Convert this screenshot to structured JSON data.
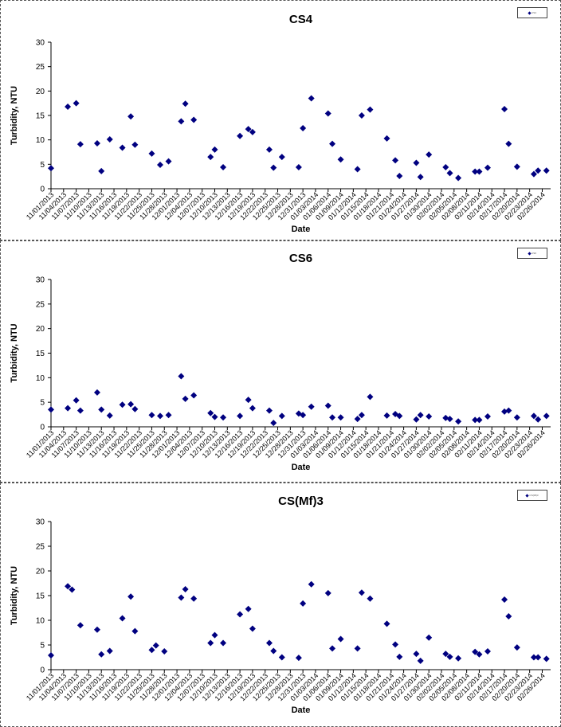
{
  "chart_data": [
    {
      "type": "scatter",
      "title": "CS4",
      "xlabel": "Date",
      "ylabel": "Turbidity, NTU",
      "ylim": [
        0,
        30
      ],
      "yticks": [
        0,
        5,
        10,
        15,
        20,
        25,
        30
      ],
      "grid": false,
      "legend": "top-right",
      "legend_label": "CS4",
      "marker_color": "#000080",
      "tick_labels": [
        "11/01/2013",
        "11/04/2013",
        "11/07/2013",
        "11/10/2013",
        "11/13/2013",
        "11/16/2013",
        "11/19/2013",
        "11/22/2013",
        "11/25/2013",
        "11/28/2013",
        "12/01/2013",
        "12/04/2013",
        "12/07/2013",
        "12/10/2013",
        "12/13/2013",
        "12/16/2013",
        "12/19/2013",
        "12/22/2013",
        "12/25/2013",
        "12/28/2013",
        "12/31/2013",
        "01/03/2014",
        "01/06/2014",
        "01/09/2014",
        "01/12/2014",
        "01/15/2014",
        "01/18/2014",
        "01/21/2014",
        "01/24/2014",
        "01/27/2014",
        "01/30/2014",
        "02/02/2014",
        "02/05/2014",
        "02/08/2014",
        "02/11/2014",
        "02/14/2014",
        "02/17/2014",
        "02/20/2014",
        "02/23/2014",
        "02/26/2014"
      ],
      "points": [
        {
          "x": "2013-11-01",
          "y": 4.2
        },
        {
          "x": "2013-11-05",
          "y": 16.8
        },
        {
          "x": "2013-11-07",
          "y": 17.5
        },
        {
          "x": "2013-11-08",
          "y": 9.1
        },
        {
          "x": "2013-11-12",
          "y": 9.3
        },
        {
          "x": "2013-11-13",
          "y": 3.6
        },
        {
          "x": "2013-11-15",
          "y": 10.1
        },
        {
          "x": "2013-11-18",
          "y": 8.4
        },
        {
          "x": "2013-11-20",
          "y": 14.8
        },
        {
          "x": "2013-11-21",
          "y": 9.0
        },
        {
          "x": "2013-11-25",
          "y": 7.2
        },
        {
          "x": "2013-11-27",
          "y": 4.9
        },
        {
          "x": "2013-11-29",
          "y": 5.6
        },
        {
          "x": "2013-12-02",
          "y": 13.8
        },
        {
          "x": "2013-12-03",
          "y": 17.4
        },
        {
          "x": "2013-12-05",
          "y": 14.1
        },
        {
          "x": "2013-12-09",
          "y": 6.5
        },
        {
          "x": "2013-12-10",
          "y": 8.0
        },
        {
          "x": "2013-12-12",
          "y": 4.4
        },
        {
          "x": "2013-12-16",
          "y": 10.8
        },
        {
          "x": "2013-12-18",
          "y": 12.2
        },
        {
          "x": "2013-12-19",
          "y": 11.6
        },
        {
          "x": "2013-12-23",
          "y": 8.0
        },
        {
          "x": "2013-12-24",
          "y": 4.3
        },
        {
          "x": "2013-12-26",
          "y": 6.5
        },
        {
          "x": "2013-12-30",
          "y": 4.4
        },
        {
          "x": "2013-12-31",
          "y": 12.4
        },
        {
          "x": "2014-01-02",
          "y": 18.5
        },
        {
          "x": "2014-01-06",
          "y": 15.4
        },
        {
          "x": "2014-01-07",
          "y": 9.2
        },
        {
          "x": "2014-01-09",
          "y": 6.0
        },
        {
          "x": "2014-01-13",
          "y": 4.0
        },
        {
          "x": "2014-01-14",
          "y": 15.0
        },
        {
          "x": "2014-01-16",
          "y": 16.2
        },
        {
          "x": "2014-01-20",
          "y": 10.3
        },
        {
          "x": "2014-01-22",
          "y": 5.8
        },
        {
          "x": "2014-01-23",
          "y": 2.6
        },
        {
          "x": "2014-01-27",
          "y": 5.3
        },
        {
          "x": "2014-01-28",
          "y": 2.4
        },
        {
          "x": "2014-01-30",
          "y": 7.0
        },
        {
          "x": "2014-02-03",
          "y": 4.4
        },
        {
          "x": "2014-02-04",
          "y": 3.2
        },
        {
          "x": "2014-02-06",
          "y": 2.2
        },
        {
          "x": "2014-02-10",
          "y": 3.5
        },
        {
          "x": "2014-02-11",
          "y": 3.5
        },
        {
          "x": "2014-02-13",
          "y": 4.3
        },
        {
          "x": "2014-02-17",
          "y": 16.3
        },
        {
          "x": "2014-02-18",
          "y": 9.2
        },
        {
          "x": "2014-02-20",
          "y": 4.5
        },
        {
          "x": "2014-02-24",
          "y": 3.0
        },
        {
          "x": "2014-02-25",
          "y": 3.7
        },
        {
          "x": "2014-02-27",
          "y": 3.7
        }
      ]
    },
    {
      "type": "scatter",
      "title": "CS6",
      "xlabel": "Date",
      "ylabel": "Turbidity, NTU",
      "ylim": [
        0,
        30
      ],
      "yticks": [
        0,
        5,
        10,
        15,
        20,
        25,
        30
      ],
      "grid": false,
      "legend": "top-right",
      "legend_label": "CS6",
      "marker_color": "#000080",
      "tick_labels": [
        "11/01/2013",
        "11/04/2013",
        "11/07/2013",
        "11/10/2013",
        "11/13/2013",
        "11/16/2013",
        "11/19/2013",
        "11/22/2013",
        "11/25/2013",
        "11/28/2013",
        "12/01/2013",
        "12/04/2013",
        "12/07/2013",
        "12/10/2013",
        "12/13/2013",
        "12/16/2013",
        "12/19/2013",
        "12/22/2013",
        "12/25/2013",
        "12/28/2013",
        "12/31/2013",
        "01/03/2014",
        "01/06/2014",
        "01/09/2014",
        "01/12/2014",
        "01/15/2014",
        "01/18/2014",
        "01/21/2014",
        "01/24/2014",
        "01/27/2014",
        "01/30/2014",
        "02/02/2014",
        "02/05/2014",
        "02/08/2014",
        "02/11/2014",
        "02/14/2014",
        "02/17/2014",
        "02/20/2014",
        "02/23/2014",
        "02/26/2014"
      ],
      "points": [
        {
          "x": "2013-11-01",
          "y": 3.5
        },
        {
          "x": "2013-11-05",
          "y": 3.8
        },
        {
          "x": "2013-11-07",
          "y": 5.4
        },
        {
          "x": "2013-11-08",
          "y": 3.3
        },
        {
          "x": "2013-11-12",
          "y": 7.0
        },
        {
          "x": "2013-11-13",
          "y": 3.5
        },
        {
          "x": "2013-11-15",
          "y": 2.3
        },
        {
          "x": "2013-11-18",
          "y": 4.5
        },
        {
          "x": "2013-11-20",
          "y": 4.6
        },
        {
          "x": "2013-11-21",
          "y": 3.6
        },
        {
          "x": "2013-11-25",
          "y": 2.4
        },
        {
          "x": "2013-11-27",
          "y": 2.2
        },
        {
          "x": "2013-11-29",
          "y": 2.4
        },
        {
          "x": "2013-12-02",
          "y": 10.3
        },
        {
          "x": "2013-12-03",
          "y": 5.7
        },
        {
          "x": "2013-12-05",
          "y": 6.4
        },
        {
          "x": "2013-12-09",
          "y": 2.8
        },
        {
          "x": "2013-12-10",
          "y": 2.0
        },
        {
          "x": "2013-12-12",
          "y": 1.9
        },
        {
          "x": "2013-12-16",
          "y": 2.2
        },
        {
          "x": "2013-12-18",
          "y": 5.5
        },
        {
          "x": "2013-12-19",
          "y": 3.8
        },
        {
          "x": "2013-12-23",
          "y": 3.3
        },
        {
          "x": "2013-12-24",
          "y": 0.8
        },
        {
          "x": "2013-12-26",
          "y": 2.2
        },
        {
          "x": "2013-12-30",
          "y": 2.7
        },
        {
          "x": "2013-12-31",
          "y": 2.4
        },
        {
          "x": "2014-01-02",
          "y": 4.1
        },
        {
          "x": "2014-01-06",
          "y": 4.3
        },
        {
          "x": "2014-01-07",
          "y": 1.9
        },
        {
          "x": "2014-01-09",
          "y": 1.9
        },
        {
          "x": "2014-01-13",
          "y": 1.6
        },
        {
          "x": "2014-01-14",
          "y": 2.4
        },
        {
          "x": "2014-01-16",
          "y": 6.1
        },
        {
          "x": "2014-01-20",
          "y": 2.3
        },
        {
          "x": "2014-01-22",
          "y": 2.6
        },
        {
          "x": "2014-01-23",
          "y": 2.2
        },
        {
          "x": "2014-01-27",
          "y": 1.5
        },
        {
          "x": "2014-01-28",
          "y": 2.4
        },
        {
          "x": "2014-01-30",
          "y": 2.1
        },
        {
          "x": "2014-02-03",
          "y": 1.8
        },
        {
          "x": "2014-02-04",
          "y": 1.6
        },
        {
          "x": "2014-02-06",
          "y": 1.1
        },
        {
          "x": "2014-02-10",
          "y": 1.4
        },
        {
          "x": "2014-02-11",
          "y": 1.4
        },
        {
          "x": "2014-02-13",
          "y": 2.1
        },
        {
          "x": "2014-02-17",
          "y": 3.1
        },
        {
          "x": "2014-02-18",
          "y": 3.3
        },
        {
          "x": "2014-02-20",
          "y": 1.9
        },
        {
          "x": "2014-02-24",
          "y": 2.2
        },
        {
          "x": "2014-02-25",
          "y": 1.5
        },
        {
          "x": "2014-02-27",
          "y": 2.2
        }
      ]
    },
    {
      "type": "scatter",
      "title": "CS(Mf)3",
      "xlabel": "Date",
      "ylabel": "Turbidity, NTU",
      "ylim": [
        0,
        30
      ],
      "yticks": [
        0,
        5,
        10,
        15,
        20,
        25,
        30
      ],
      "grid": false,
      "legend": "top-right",
      "legend_label": "CS(Mf)3",
      "marker_color": "#000080",
      "tick_labels": [
        "11/01/2013",
        "11/04/2013",
        "11/07/2013",
        "11/10/2013",
        "11/13/2013",
        "11/16/2013",
        "11/19/2013",
        "11/22/2013",
        "11/25/2013",
        "11/28/2013",
        "12/01/2013",
        "12/04/2013",
        "12/07/2013",
        "12/10/2013",
        "12/13/2013",
        "12/16/2013",
        "12/19/2013",
        "12/22/2013",
        "12/25/2013",
        "12/28/2013",
        "12/31/2013",
        "01/03/2014",
        "01/06/2014",
        "01/09/2014",
        "01/12/2014",
        "01/15/2014",
        "01/18/2014",
        "01/21/2014",
        "01/24/2014",
        "01/27/2014",
        "01/30/2014",
        "02/02/2014",
        "02/05/2014",
        "02/08/2014",
        "02/11/2014",
        "02/14/2014",
        "02/17/2014",
        "02/20/2014",
        "02/23/2014",
        "02/26/2014"
      ],
      "points": [
        {
          "x": "2013-11-01",
          "y": 2.9
        },
        {
          "x": "2013-11-05",
          "y": 16.9
        },
        {
          "x": "2013-11-06",
          "y": 16.2
        },
        {
          "x": "2013-11-08",
          "y": 9.0
        },
        {
          "x": "2013-11-12",
          "y": 8.1
        },
        {
          "x": "2013-11-13",
          "y": 3.1
        },
        {
          "x": "2013-11-15",
          "y": 3.8
        },
        {
          "x": "2013-11-18",
          "y": 10.4
        },
        {
          "x": "2013-11-20",
          "y": 14.8
        },
        {
          "x": "2013-11-21",
          "y": 7.8
        },
        {
          "x": "2013-11-25",
          "y": 4.0
        },
        {
          "x": "2013-11-26",
          "y": 4.9
        },
        {
          "x": "2013-11-28",
          "y": 3.7
        },
        {
          "x": "2013-12-02",
          "y": 14.6
        },
        {
          "x": "2013-12-03",
          "y": 16.3
        },
        {
          "x": "2013-12-05",
          "y": 14.4
        },
        {
          "x": "2013-12-09",
          "y": 5.4
        },
        {
          "x": "2013-12-10",
          "y": 7.0
        },
        {
          "x": "2013-12-12",
          "y": 5.4
        },
        {
          "x": "2013-12-16",
          "y": 11.2
        },
        {
          "x": "2013-12-18",
          "y": 12.3
        },
        {
          "x": "2013-12-19",
          "y": 8.3
        },
        {
          "x": "2013-12-23",
          "y": 5.4
        },
        {
          "x": "2013-12-24",
          "y": 3.8
        },
        {
          "x": "2013-12-26",
          "y": 2.5
        },
        {
          "x": "2013-12-30",
          "y": 2.4
        },
        {
          "x": "2013-12-31",
          "y": 13.4
        },
        {
          "x": "2014-01-02",
          "y": 17.3
        },
        {
          "x": "2014-01-06",
          "y": 15.5
        },
        {
          "x": "2014-01-07",
          "y": 4.3
        },
        {
          "x": "2014-01-09",
          "y": 6.2
        },
        {
          "x": "2014-01-13",
          "y": 4.3
        },
        {
          "x": "2014-01-14",
          "y": 15.6
        },
        {
          "x": "2014-01-16",
          "y": 14.4
        },
        {
          "x": "2014-01-20",
          "y": 9.3
        },
        {
          "x": "2014-01-22",
          "y": 5.1
        },
        {
          "x": "2014-01-23",
          "y": 2.6
        },
        {
          "x": "2014-01-27",
          "y": 3.2
        },
        {
          "x": "2014-01-28",
          "y": 1.8
        },
        {
          "x": "2014-01-30",
          "y": 6.5
        },
        {
          "x": "2014-02-03",
          "y": 3.2
        },
        {
          "x": "2014-02-04",
          "y": 2.6
        },
        {
          "x": "2014-02-06",
          "y": 2.3
        },
        {
          "x": "2014-02-10",
          "y": 3.6
        },
        {
          "x": "2014-02-11",
          "y": 3.1
        },
        {
          "x": "2014-02-13",
          "y": 3.7
        },
        {
          "x": "2014-02-17",
          "y": 14.2
        },
        {
          "x": "2014-02-18",
          "y": 10.8
        },
        {
          "x": "2014-02-20",
          "y": 4.5
        },
        {
          "x": "2014-02-24",
          "y": 2.5
        },
        {
          "x": "2014-02-25",
          "y": 2.5
        },
        {
          "x": "2014-02-27",
          "y": 2.2
        }
      ]
    }
  ]
}
